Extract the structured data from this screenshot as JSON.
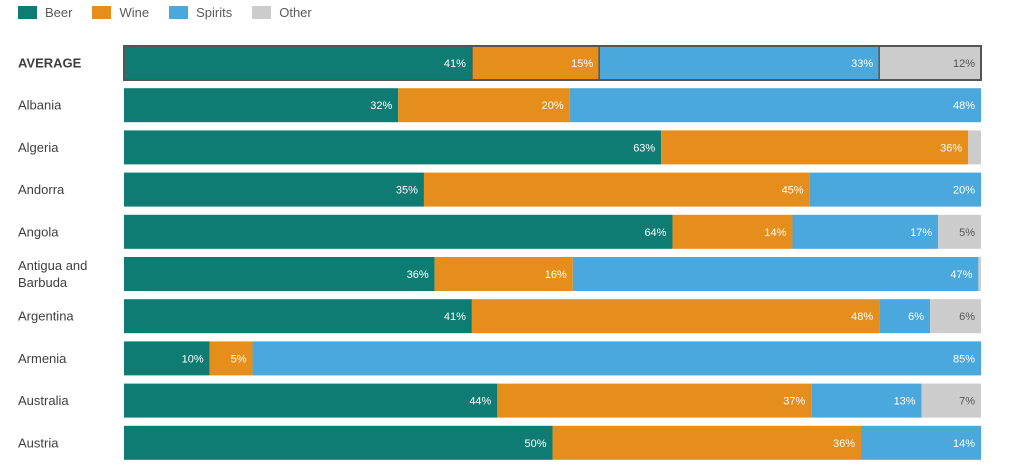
{
  "chart_data": {
    "type": "bar",
    "orientation": "horizontal",
    "stacked": true,
    "percent_stacked": true,
    "legend_position": "top-left",
    "grid": false,
    "title": "",
    "xlabel": "",
    "ylabel": "",
    "series": [
      {
        "name": "Beer",
        "color": "#0f7c74"
      },
      {
        "name": "Wine",
        "color": "#e68e1c"
      },
      {
        "name": "Spirits",
        "color": "#4aa8dc"
      },
      {
        "name": "Other",
        "color": "#cccccc"
      }
    ],
    "rows": [
      {
        "label": "AVERAGE",
        "bold": true,
        "highlight": true,
        "values": [
          41,
          15,
          33,
          12
        ],
        "labels": [
          "41%",
          "15%",
          "33%",
          "12%"
        ]
      },
      {
        "label": "Albania",
        "values": [
          32,
          20,
          48,
          0
        ],
        "labels": [
          "32%",
          "20%",
          "48%",
          ""
        ]
      },
      {
        "label": "Algeria",
        "values": [
          63,
          36,
          0,
          1.5
        ],
        "labels": [
          "63%",
          "36%",
          "",
          ""
        ]
      },
      {
        "label": "Andorra",
        "values": [
          35,
          45,
          20,
          0
        ],
        "labels": [
          "35%",
          "45%",
          "20%",
          ""
        ]
      },
      {
        "label": "Angola",
        "values": [
          64,
          14,
          17,
          5
        ],
        "labels": [
          "64%",
          "14%",
          "17%",
          "5%"
        ]
      },
      {
        "label": "Antigua and Barbuda",
        "values": [
          36,
          16,
          47,
          0.3
        ],
        "labels": [
          "36%",
          "16%",
          "47%",
          ""
        ]
      },
      {
        "label": "Argentina",
        "values": [
          41,
          48,
          6,
          6
        ],
        "labels": [
          "41%",
          "48%",
          "6%",
          "6%"
        ]
      },
      {
        "label": "Armenia",
        "values": [
          10,
          5,
          85,
          0
        ],
        "labels": [
          "10%",
          "5%",
          "85%",
          ""
        ]
      },
      {
        "label": "Australia",
        "values": [
          44,
          37,
          13,
          7
        ],
        "labels": [
          "44%",
          "37%",
          "13%",
          "7%"
        ]
      },
      {
        "label": "Austria",
        "values": [
          50,
          36,
          14,
          0
        ],
        "labels": [
          "50%",
          "36%",
          "14%",
          ""
        ]
      }
    ]
  }
}
